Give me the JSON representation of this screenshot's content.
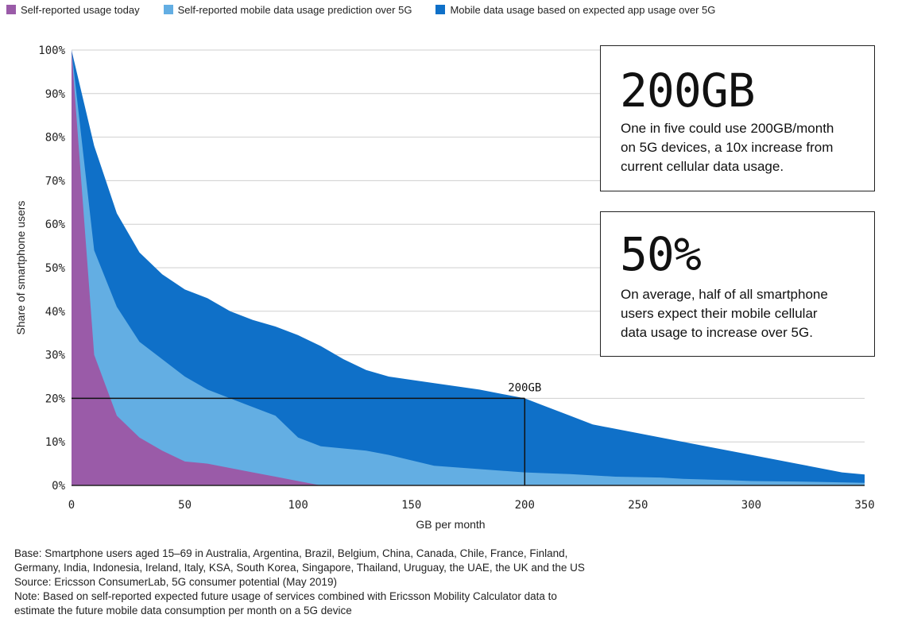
{
  "legend": [
    {
      "label": "Self-reported usage today",
      "color": "#9a5ba8"
    },
    {
      "label": "Self-reported mobile data usage prediction over 5G",
      "color": "#63aee3"
    },
    {
      "label": "Mobile data usage based on expected app usage over 5G",
      "color": "#0f70c8"
    }
  ],
  "callouts": [
    {
      "value": "200GB",
      "text": [
        "One in five could use 200GB/month",
        "on 5G devices, a 10x increase from",
        "current cellular data usage."
      ]
    },
    {
      "value": "50%",
      "text": [
        "On average, half of all smartphone",
        "users expect their mobile cellular",
        "data usage to increase over 5G."
      ]
    }
  ],
  "notes": [
    "Base: Smartphone users aged 15–69 in Australia, Argentina, Brazil, Belgium, China, Canada, Chile, France, Finland,",
    "Germany, India, Indonesia, Ireland, Italy, KSA, South Korea, Singapore, Thailand, Uruguay, the UAE, the UK and the US",
    "Source: Ericsson ConsumerLab, 5G consumer potential (May 2019)",
    "Note: Based on self-reported expected future usage of services combined with Ericsson Mobility Calculator data to",
    "estimate the future mobile data consumption per month on a 5G device"
  ],
  "chart_data": {
    "type": "area",
    "xlabel": "GB per month",
    "ylabel": "Share of smartphone users",
    "xlim": [
      0,
      350
    ],
    "ylim": [
      0,
      100
    ],
    "x_ticks": [
      0,
      50,
      100,
      150,
      200,
      250,
      300,
      350
    ],
    "y_ticks": [
      0,
      10,
      20,
      30,
      40,
      50,
      60,
      70,
      80,
      90,
      100
    ],
    "y_tick_suffix": "%",
    "grid": "horizontal",
    "legend_position": "top",
    "series": [
      {
        "name": "Mobile data usage based on expected app usage over 5G",
        "color": "#0f70c8",
        "points": [
          [
            0,
            100
          ],
          [
            10,
            78
          ],
          [
            20,
            62.5
          ],
          [
            30,
            53.5
          ],
          [
            40,
            48.5
          ],
          [
            50,
            45
          ],
          [
            60,
            43
          ],
          [
            70,
            40
          ],
          [
            80,
            38
          ],
          [
            90,
            36.5
          ],
          [
            100,
            34.5
          ],
          [
            110,
            32
          ],
          [
            120,
            29
          ],
          [
            130,
            26.5
          ],
          [
            140,
            25
          ],
          [
            160,
            23.5
          ],
          [
            180,
            22
          ],
          [
            200,
            20
          ],
          [
            210,
            18
          ],
          [
            220,
            16
          ],
          [
            230,
            14
          ],
          [
            250,
            12
          ],
          [
            270,
            10
          ],
          [
            280,
            9
          ],
          [
            300,
            7
          ],
          [
            320,
            5
          ],
          [
            340,
            3
          ],
          [
            350,
            2.5
          ]
        ]
      },
      {
        "name": "Self-reported mobile data usage prediction over 5G",
        "color": "#63aee3",
        "points": [
          [
            0,
            100
          ],
          [
            10,
            54
          ],
          [
            20,
            41
          ],
          [
            30,
            33
          ],
          [
            40,
            29
          ],
          [
            50,
            25
          ],
          [
            60,
            22
          ],
          [
            70,
            20
          ],
          [
            80,
            18
          ],
          [
            90,
            16
          ],
          [
            100,
            11
          ],
          [
            110,
            9
          ],
          [
            130,
            8
          ],
          [
            140,
            7
          ],
          [
            160,
            4.5
          ],
          [
            200,
            3
          ],
          [
            210,
            2.8
          ],
          [
            220,
            2.6
          ],
          [
            230,
            2.3
          ],
          [
            240,
            2
          ],
          [
            260,
            1.8
          ],
          [
            270,
            1.5
          ],
          [
            290,
            1.2
          ],
          [
            300,
            1
          ],
          [
            320,
            0.9
          ],
          [
            330,
            0.8
          ],
          [
            350,
            0.6
          ]
        ]
      },
      {
        "name": "Self-reported usage today",
        "color": "#9a5ba8",
        "points": [
          [
            0,
            100
          ],
          [
            10,
            30
          ],
          [
            20,
            16
          ],
          [
            30,
            11
          ],
          [
            40,
            8
          ],
          [
            50,
            5.5
          ],
          [
            60,
            5
          ],
          [
            70,
            4
          ],
          [
            80,
            3
          ],
          [
            90,
            2
          ],
          [
            100,
            1
          ],
          [
            110,
            0
          ]
        ]
      }
    ],
    "annotation": {
      "label": "200GB",
      "x": 200,
      "y": 20
    }
  }
}
